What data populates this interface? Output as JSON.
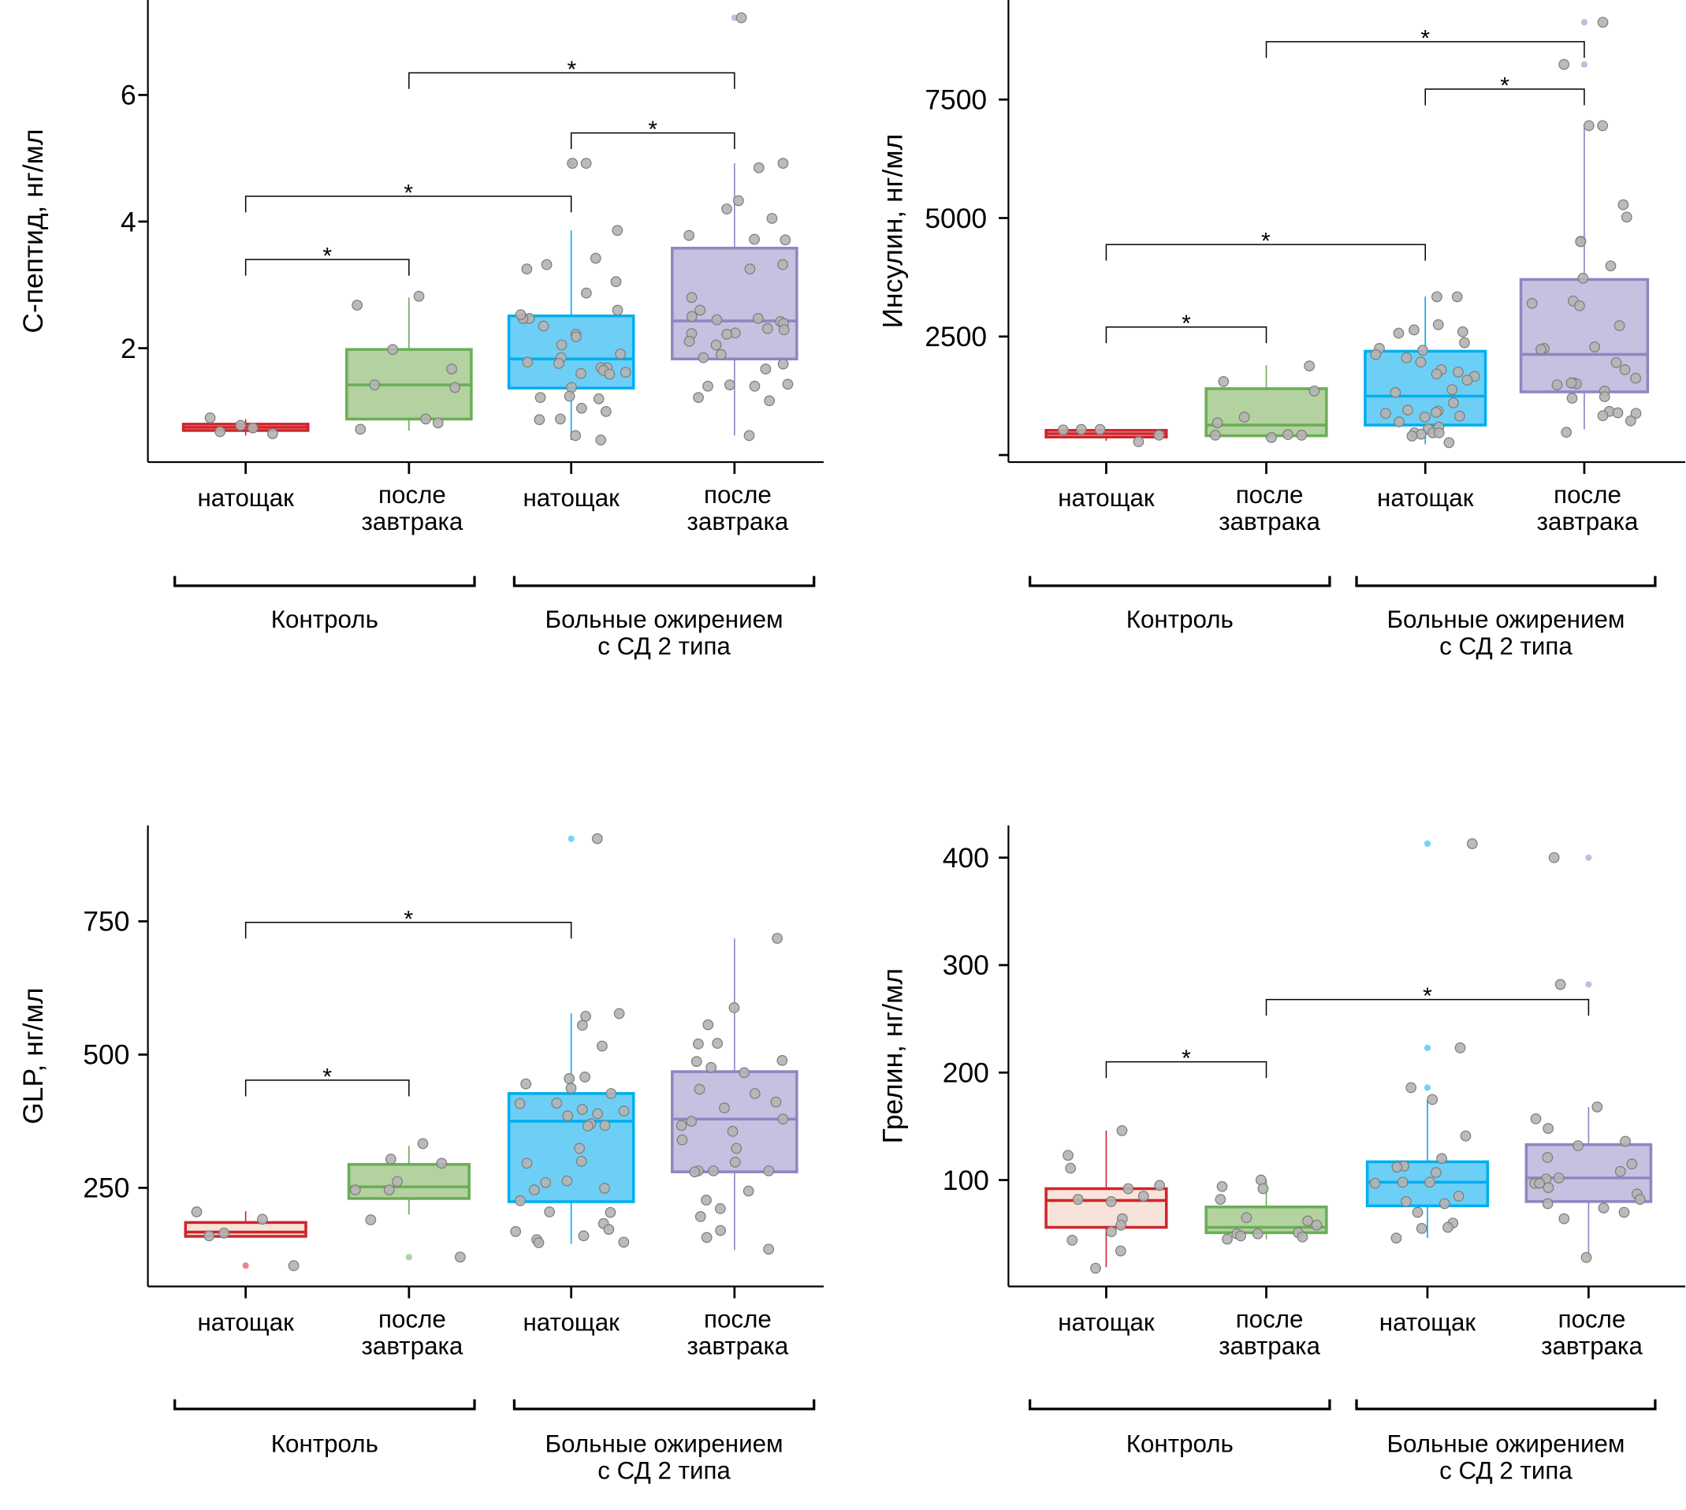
{
  "figure": {
    "colors": {
      "control_fasting": {
        "stroke": "#d0242b",
        "fill": "#f7e3da"
      },
      "control_after": {
        "stroke": "#6aae56",
        "fill": "#b3d2a0"
      },
      "diabetic_fasting": {
        "stroke": "#00aeef",
        "fill": "#6dcff6"
      },
      "diabetic_after": {
        "stroke": "#8f86c2",
        "fill": "#c5c1e0"
      },
      "point": "#b4b4b4"
    },
    "significance_marker": "*"
  },
  "chart_data": [
    {
      "type": "box",
      "id": "c-peptide",
      "title": "",
      "ylabel": "С-пептид, нг/мл",
      "xlabel": "",
      "ylim": [
        0.2,
        7.5
      ],
      "yticks": [
        2,
        4,
        6
      ],
      "ytick_labels": [
        "2",
        "4",
        "6"
      ],
      "categories": [
        "натощак",
        "после\nзавтрака",
        "натощак",
        "после\nзавтрака"
      ],
      "groups": [
        {
          "label": "Контроль",
          "categories": [
            0,
            1
          ]
        },
        {
          "label": "Больные ожирением\nс СД 2 типа",
          "categories": [
            2,
            3
          ]
        }
      ],
      "boxes": [
        {
          "q1": 0.7,
          "median": 0.75,
          "q3": 0.8,
          "whisker_low": 0.62,
          "whisker_high": 0.88,
          "outliers": []
        },
        {
          "q1": 0.88,
          "median": 1.42,
          "q3": 1.98,
          "whisker_low": 0.7,
          "whisker_high": 2.8,
          "outliers": []
        },
        {
          "q1": 1.37,
          "median": 1.83,
          "q3": 2.51,
          "whisker_low": 0.55,
          "whisker_high": 3.86,
          "outliers": [
            4.92
          ]
        },
        {
          "q1": 1.83,
          "median": 2.43,
          "q3": 3.58,
          "whisker_low": 0.62,
          "whisker_high": 4.92,
          "outliers": [
            7.22
          ]
        }
      ],
      "points": [
        [
          0.9,
          0.65,
          0.74,
          0.78,
          0.68
        ],
        [
          2.82,
          2.68,
          1.98,
          1.67,
          1.42,
          1.38,
          0.88,
          0.82,
          0.72
        ],
        [
          4.92,
          4.92,
          3.86,
          3.42,
          3.25,
          3.32,
          3.05,
          2.87,
          2.6,
          2.47,
          2.47,
          2.47,
          2.53,
          2.35,
          2.22,
          2.18,
          2.05,
          1.85,
          1.91,
          1.78,
          1.69,
          1.69,
          1.62,
          1.65,
          1.59,
          1.6,
          1.76,
          1.38,
          1.24,
          1.2,
          1.22,
          1.05,
          0.88,
          0.87,
          1.0,
          0.62,
          0.55
        ],
        [
          7.22,
          4.92,
          4.85,
          4.33,
          4.2,
          4.05,
          3.72,
          3.78,
          3.71,
          3.32,
          3.25,
          2.8,
          2.6,
          2.5,
          2.47,
          2.42,
          2.39,
          2.45,
          2.31,
          2.29,
          2.23,
          2.24,
          2.22,
          2.11,
          2.05,
          1.9,
          1.85,
          1.75,
          1.67,
          1.43,
          1.4,
          1.4,
          1.42,
          1.22,
          1.17,
          0.62
        ]
      ],
      "comparisons": [
        {
          "from": 0,
          "to": 1,
          "y": 3.4,
          "label": "*"
        },
        {
          "from": 0,
          "to": 2,
          "y": 4.4,
          "label": "*"
        },
        {
          "from": 2,
          "to": 3,
          "y": 5.4,
          "label": "*"
        },
        {
          "from": 1,
          "to": 3,
          "y": 6.35,
          "label": "*"
        }
      ]
    },
    {
      "type": "box",
      "id": "insulin",
      "title": "",
      "ylabel": "Инсулин, нг/мл",
      "xlabel": "",
      "ylim": [
        -150,
        9600
      ],
      "yticks": [
        0,
        2500,
        5000,
        7500
      ],
      "ytick_labels": [
        "",
        "2500",
        "5000",
        "7500"
      ],
      "categories": [
        "натощак",
        "после\nзавтрака",
        "натощак",
        "после\nзавтрака"
      ],
      "groups": [
        {
          "label": "Контроль",
          "categories": [
            0,
            1
          ]
        },
        {
          "label": "Больные ожирением\nс СД 2 типа",
          "categories": [
            2,
            3
          ]
        }
      ],
      "boxes": [
        {
          "q1": 380,
          "median": 450,
          "q3": 520,
          "whisker_low": 300,
          "whisker_high": 540,
          "outliers": []
        },
        {
          "q1": 407,
          "median": 632,
          "q3": 1400,
          "whisker_low": 340,
          "whisker_high": 1897,
          "outliers": []
        },
        {
          "q1": 632,
          "median": 1242,
          "q3": 2190,
          "whisker_low": 226,
          "whisker_high": 3342,
          "outliers": []
        },
        {
          "q1": 1332,
          "median": 2123,
          "q3": 3704,
          "whisker_low": 542,
          "whisker_high": 6911,
          "outliers": [
            9130,
            8240
          ]
        }
      ],
      "points": [
        [
          540,
          420,
          530,
          540,
          280
        ],
        [
          1880,
          1550,
          1350,
          800,
          680,
          430,
          420,
          420,
          370
        ],
        [
          3340,
          3340,
          2750,
          2640,
          2570,
          2600,
          2370,
          2210,
          2250,
          2120,
          2050,
          1960,
          1800,
          1750,
          1710,
          1660,
          1580,
          1320,
          1380,
          1100,
          950,
          930,
          900,
          820,
          880,
          800,
          700,
          590,
          550,
          470,
          470,
          470,
          440,
          400,
          260
        ],
        [
          9130,
          8240,
          6950,
          6950,
          5280,
          5020,
          4510,
          4500,
          3990,
          3730,
          3250,
          3150,
          3200,
          2730,
          2280,
          2250,
          2230,
          1950,
          1800,
          1620,
          1520,
          1500,
          1520,
          1480,
          1350,
          1230,
          1200,
          920,
          880,
          890,
          830,
          720,
          480
        ]
      ],
      "comparisons": [
        {
          "from": 0,
          "to": 1,
          "y": 2700,
          "label": "*"
        },
        {
          "from": 0,
          "to": 2,
          "y": 4440,
          "label": "*"
        },
        {
          "from": 2,
          "to": 3,
          "y": 7720,
          "label": "*"
        },
        {
          "from": 1,
          "to": 3,
          "y": 8720,
          "label": "*"
        }
      ]
    },
    {
      "type": "box",
      "id": "glp",
      "title": "",
      "ylabel": "GLP, нг/мл",
      "xlabel": "",
      "ylim": [
        65,
        930
      ],
      "yticks": [
        250,
        500,
        750
      ],
      "ytick_labels": [
        "250",
        "500",
        "750"
      ],
      "categories": [
        "натощак",
        "после\nзавтрака",
        "натощак",
        "после\nзавтрака"
      ],
      "groups": [
        {
          "label": "Контроль",
          "categories": [
            0,
            1
          ]
        },
        {
          "label": "Больные ожирением\nс СД 2 типа",
          "categories": [
            2,
            3
          ]
        }
      ],
      "boxes": [
        {
          "q1": 159,
          "median": 167,
          "q3": 185,
          "whisker_low": 159,
          "whisker_high": 206,
          "outliers": [
            104
          ]
        },
        {
          "q1": 230,
          "median": 252,
          "q3": 294,
          "whisker_low": 200,
          "whisker_high": 329,
          "outliers": [
            120
          ]
        },
        {
          "q1": 224,
          "median": 375,
          "q3": 427,
          "whisker_low": 145,
          "whisker_high": 577,
          "outliers": [
            905
          ]
        },
        {
          "q1": 280,
          "median": 379,
          "q3": 468,
          "whisker_low": 133,
          "whisker_high": 718,
          "outliers": []
        }
      ],
      "points": [
        [
          205,
          191,
          165,
          160,
          104
        ],
        [
          333,
          304,
          296,
          262,
          246,
          246,
          190,
          120
        ],
        [
          905,
          577,
          572,
          555,
          516,
          455,
          458,
          445,
          437,
          427,
          409,
          408,
          397,
          394,
          389,
          385,
          370,
          367,
          366,
          324,
          300,
          296,
          263,
          260,
          249,
          246,
          226,
          204,
          205,
          183,
          172,
          168,
          160,
          153,
          147,
          148
        ],
        [
          718,
          588,
          556,
          521,
          520,
          489,
          487,
          476,
          466,
          435,
          427,
          411,
          400,
          379,
          375,
          367,
          356,
          340,
          324,
          298,
          282,
          282,
          282,
          280,
          244,
          227,
          211,
          196,
          170,
          157,
          135
        ]
      ],
      "comparisons": [
        {
          "from": 0,
          "to": 1,
          "y": 452,
          "label": "*"
        },
        {
          "from": 0,
          "to": 2,
          "y": 748,
          "label": "*"
        }
      ]
    },
    {
      "type": "box",
      "id": "ghrelin",
      "title": "",
      "ylabel": "Грелин, нг/мл",
      "xlabel": "",
      "ylim": [
        1,
        430
      ],
      "yticks": [
        100,
        200,
        300,
        400
      ],
      "ytick_labels": [
        "100",
        "200",
        "300",
        "400"
      ],
      "categories": [
        "натощак",
        "после\nзавтрака",
        "натощак",
        "после\nзавтрака"
      ],
      "groups": [
        {
          "label": "Контроль",
          "categories": [
            0,
            1
          ]
        },
        {
          "label": "Больные ожирением\nс СД 2 типа",
          "categories": [
            2,
            3
          ]
        }
      ],
      "boxes": [
        {
          "q1": 56,
          "median": 81,
          "q3": 92,
          "whisker_low": 19,
          "whisker_high": 146,
          "outliers": []
        },
        {
          "q1": 51,
          "median": 56,
          "q3": 75,
          "whisker_low": 45,
          "whisker_high": 100,
          "outliers": []
        },
        {
          "q1": 76,
          "median": 98,
          "q3": 117,
          "whisker_low": 46,
          "whisker_high": 175,
          "outliers": [
            413,
            223,
            186
          ]
        },
        {
          "q1": 80,
          "median": 102,
          "q3": 133,
          "whisker_low": 28,
          "whisker_high": 168,
          "outliers": [
            400,
            282
          ]
        }
      ],
      "points": [
        [
          146,
          123,
          111,
          95,
          92,
          85,
          82,
          80,
          64,
          58,
          52,
          44,
          34,
          18
        ],
        [
          100,
          94,
          92,
          82,
          65,
          62,
          58,
          51,
          50,
          50,
          48,
          47,
          45
        ],
        [
          413,
          223,
          186,
          175,
          141,
          120,
          113,
          112,
          107,
          98,
          98,
          97,
          85,
          80,
          78,
          70,
          60,
          56,
          55,
          46
        ],
        [
          400,
          282,
          168,
          157,
          148,
          136,
          132,
          121,
          115,
          108,
          102,
          101,
          97,
          97,
          93,
          87,
          82,
          78,
          74,
          70,
          64,
          28
        ]
      ],
      "comparisons": [
        {
          "from": 0,
          "to": 1,
          "y": 210,
          "label": "*"
        },
        {
          "from": 1,
          "to": 3,
          "y": 268,
          "label": "*"
        }
      ]
    }
  ]
}
